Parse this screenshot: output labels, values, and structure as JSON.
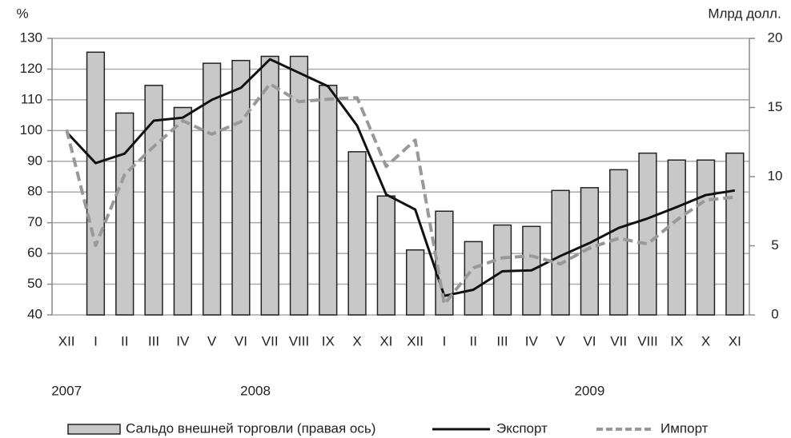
{
  "chart_data": {
    "type": "combo",
    "y_label": "%",
    "y2_label": "Млрд долл.",
    "categories": [
      "XII",
      "I",
      "II",
      "III",
      "IV",
      "V",
      "VI",
      "VII",
      "VIII",
      "IX",
      "X",
      "XI",
      "XII",
      "I",
      "II",
      "III",
      "IV",
      "V",
      "VI",
      "VII",
      "VIII",
      "IX",
      "X",
      "XI"
    ],
    "year_groups": [
      {
        "label": "2007",
        "from": 0,
        "to": 0
      },
      {
        "label": "2008",
        "from": 1,
        "to": 12
      },
      {
        "label": "2009",
        "from": 13,
        "to": 23
      }
    ],
    "ylim": [
      40,
      130
    ],
    "yticks": [
      40,
      50,
      60,
      70,
      80,
      90,
      100,
      110,
      120,
      130
    ],
    "y2lim": [
      0,
      20
    ],
    "y2ticks": [
      0,
      5,
      10,
      15,
      20
    ],
    "grid": true,
    "series": [
      {
        "name": "Сальдо внешней торговли (правая ось)",
        "type": "bar",
        "axis": "y2",
        "color": "#c8c8c8",
        "values": [
          null,
          19.0,
          14.6,
          16.6,
          15.0,
          18.2,
          18.4,
          18.7,
          18.7,
          16.6,
          11.8,
          8.6,
          4.7,
          7.5,
          5.3,
          6.5,
          6.4,
          9.0,
          9.2,
          10.5,
          11.7,
          11.2,
          11.2,
          11.7
        ]
      },
      {
        "name": "Экспорт",
        "type": "line",
        "color": "#111111",
        "dashed": false,
        "values": [
          99.5,
          89.4,
          92.5,
          103.2,
          104.2,
          110.0,
          113.9,
          123.2,
          118.8,
          114.4,
          101.6,
          79.2,
          74.3,
          46.2,
          48.2,
          54.2,
          54.5,
          59.2,
          63.4,
          68.3,
          71.4,
          75.1,
          79.0,
          80.5
        ]
      },
      {
        "name": "Импорт",
        "type": "line",
        "color": "#999999",
        "dashed": true,
        "values": [
          100.3,
          62.6,
          85.7,
          94.8,
          103.2,
          98.8,
          102.9,
          115.2,
          109.4,
          110.2,
          110.7,
          88.3,
          96.9,
          43.5,
          55.3,
          58.6,
          59.2,
          56.6,
          61.8,
          64.9,
          63.1,
          70.9,
          77.4,
          78.3
        ]
      }
    ]
  }
}
